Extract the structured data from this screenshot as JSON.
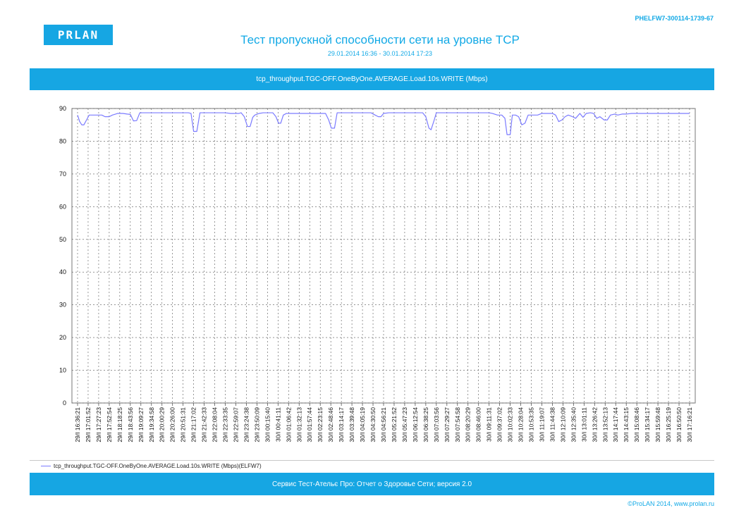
{
  "header": {
    "doc_id": "PHELFW7-300114-1739-67",
    "logo_text": "PRLAN",
    "title": "Тест пропускной способности сети на уровне TCP",
    "subtitle": "29.01.2014 16:36 - 30.01.2014 17:23"
  },
  "chart_header": "tcp_throughput.TGC-OFF.OneByOne.AVERAGE.Load.10s.WRITE (Mbps)",
  "legend": {
    "label": "tcp_throughput.TGC-OFF.OneByOne.AVERAGE.Load.10s.WRITE (Mbps)(ELFW7)"
  },
  "footer_bar": "Сервис Тест-Ательє Про: Отчет о Здоровье Сети; версия 2.0",
  "copyright": "ProLAN 2014, www.prolan.ru",
  "colors": {
    "accent": "#16a6e3",
    "series": "#7b7bff",
    "grid": "#555555"
  },
  "chart_data": {
    "type": "line",
    "title": "tcp_throughput.TGC-OFF.OneByOne.AVERAGE.Load.10s.WRITE (Mbps)",
    "xlabel": "",
    "ylabel": "",
    "ylim": [
      0,
      90
    ],
    "yticks": [
      0,
      10,
      20,
      30,
      40,
      50,
      60,
      70,
      80,
      90
    ],
    "grid": true,
    "legend_position": "bottom-left",
    "categories": [
      "29/I 16:36:21",
      "29/I 17:01:52",
      "29/I 17:27:23",
      "29/I 17:52:54",
      "29/I 18:18:25",
      "29/I 18:43:56",
      "29/I 19:09:27",
      "29/I 19:34:58",
      "29/I 20:00:29",
      "29/I 20:26:00",
      "29/I 20:51:31",
      "29/I 21:17:02",
      "29/I 21:42:33",
      "29/I 22:08:04",
      "29/I 22:33:35",
      "29/I 22:59:07",
      "29/I 23:24:38",
      "29/I 23:50:09",
      "30/I 00:15:40",
      "30/I 00:41:11",
      "30/I 01:06:42",
      "30/I 01:32:13",
      "30/I 01:57:44",
      "30/I 02:23:15",
      "30/I 02:48:46",
      "30/I 03:14:17",
      "30/I 03:39:48",
      "30/I 04:05:19",
      "30/I 04:30:50",
      "30/I 04:56:21",
      "30/I 05:21:52",
      "30/I 05:47:23",
      "30/I 06:12:54",
      "30/I 06:38:25",
      "30/I 07:03:56",
      "30/I 07:29:27",
      "30/I 07:54:58",
      "30/I 08:20:29",
      "30/I 08:46:00",
      "30/I 09:11:31",
      "30/I 09:37:02",
      "30/I 10:02:33",
      "30/I 10:28:04",
      "30/I 10:53:35",
      "30/I 11:19:07",
      "30/I 11:44:38",
      "30/I 12:10:09",
      "30/I 12:35:40",
      "30/I 13:01:11",
      "30/I 13:26:42",
      "30/I 13:52:13",
      "30/I 14:17:44",
      "30/I 14:43:15",
      "30/I 15:08:46",
      "30/I 15:34:17",
      "30/I 15:59:48",
      "30/I 16:25:19",
      "30/I 16:50:50",
      "30/I 17:16:21"
    ],
    "series": [
      {
        "name": "tcp_throughput.TGC-OFF.OneByOne.AVERAGE.Load.10s.WRITE (Mbps)(ELFW7)",
        "points": [
          [
            0,
            88
          ],
          [
            0.2,
            86
          ],
          [
            0.4,
            85
          ],
          [
            0.6,
            85
          ],
          [
            0.85,
            86.5
          ],
          [
            1.1,
            88
          ],
          [
            1.5,
            88
          ],
          [
            2,
            88
          ],
          [
            2.3,
            88
          ],
          [
            2.6,
            87.5
          ],
          [
            3,
            87.5
          ],
          [
            3.3,
            88
          ],
          [
            3.6,
            88.3
          ],
          [
            3.8,
            88.5
          ],
          [
            4.3,
            88.5
          ],
          [
            4.7,
            88.3
          ],
          [
            5,
            88.2
          ],
          [
            5.3,
            86.2
          ],
          [
            5.6,
            86.3
          ],
          [
            5.9,
            88.7
          ],
          [
            6.5,
            88.7
          ],
          [
            8,
            88.7
          ],
          [
            10,
            88.7
          ],
          [
            10.5,
            88.7
          ],
          [
            10.75,
            88.5
          ],
          [
            11,
            83
          ],
          [
            11.3,
            83
          ],
          [
            11.6,
            88.7
          ],
          [
            12,
            88.7
          ],
          [
            13,
            88.7
          ],
          [
            14,
            88.7
          ],
          [
            14.5,
            88.5
          ],
          [
            15,
            88.5
          ],
          [
            15.3,
            88.5
          ],
          [
            15.5,
            88.7
          ],
          [
            15.8,
            87.5
          ],
          [
            16.1,
            84.5
          ],
          [
            16.35,
            84.5
          ],
          [
            16.6,
            87.3
          ],
          [
            16.8,
            88
          ],
          [
            17.2,
            88.5
          ],
          [
            17.6,
            88.7
          ],
          [
            18.5,
            88.7
          ],
          [
            18.8,
            87.5
          ],
          [
            19.05,
            85.5
          ],
          [
            19.25,
            85.5
          ],
          [
            19.5,
            88
          ],
          [
            19.8,
            88.5
          ],
          [
            20.5,
            88.5
          ],
          [
            21,
            88.5
          ],
          [
            22,
            88.5
          ],
          [
            23,
            88.5
          ],
          [
            23.5,
            88.5
          ],
          [
            23.8,
            86.5
          ],
          [
            24.05,
            84
          ],
          [
            24.35,
            84
          ],
          [
            24.6,
            88.7
          ],
          [
            25,
            88.7
          ],
          [
            27,
            88.7
          ],
          [
            27.8,
            88.7
          ],
          [
            28.2,
            88
          ],
          [
            28.5,
            87.5
          ],
          [
            28.75,
            87.5
          ],
          [
            29,
            88.5
          ],
          [
            29.5,
            88.7
          ],
          [
            31,
            88.7
          ],
          [
            32,
            88.7
          ],
          [
            32.7,
            88.7
          ],
          [
            33,
            87.5
          ],
          [
            33.3,
            84
          ],
          [
            33.5,
            83.5
          ],
          [
            33.8,
            86.5
          ],
          [
            34,
            88.7
          ],
          [
            35,
            88.7
          ],
          [
            37,
            88.7
          ],
          [
            38,
            88.7
          ],
          [
            39,
            88.7
          ],
          [
            39.3,
            88.5
          ],
          [
            39.8,
            88
          ],
          [
            40.2,
            88
          ],
          [
            40.5,
            87
          ],
          [
            40.7,
            82
          ],
          [
            41,
            82
          ],
          [
            41.2,
            88
          ],
          [
            41.5,
            88
          ],
          [
            41.8,
            87.5
          ],
          [
            42.1,
            85
          ],
          [
            42.4,
            85.5
          ],
          [
            42.7,
            88
          ],
          [
            43.2,
            88
          ],
          [
            43.6,
            88
          ],
          [
            44,
            88.5
          ],
          [
            44.6,
            88.5
          ],
          [
            45,
            88.5
          ],
          [
            45.3,
            88
          ],
          [
            45.6,
            86
          ],
          [
            45.9,
            86.5
          ],
          [
            46.2,
            87.5
          ],
          [
            46.5,
            88
          ],
          [
            46.9,
            87.5
          ],
          [
            47.2,
            87
          ],
          [
            47.6,
            88.5
          ],
          [
            47.9,
            87.3
          ],
          [
            48.2,
            88.5
          ],
          [
            48.6,
            88.7
          ],
          [
            48.9,
            88.5
          ],
          [
            49.2,
            87
          ],
          [
            49.5,
            87.5
          ],
          [
            49.9,
            86.5
          ],
          [
            50.2,
            86.5
          ],
          [
            50.5,
            88
          ],
          [
            50.9,
            88.3
          ],
          [
            51.2,
            88
          ],
          [
            51.6,
            88.3
          ],
          [
            52,
            88.3
          ],
          [
            52.5,
            88.5
          ],
          [
            53,
            88.5
          ],
          [
            54,
            88.5
          ],
          [
            55,
            88.5
          ],
          [
            56,
            88.5
          ],
          [
            57,
            88.5
          ],
          [
            58,
            88.5
          ]
        ]
      }
    ]
  }
}
